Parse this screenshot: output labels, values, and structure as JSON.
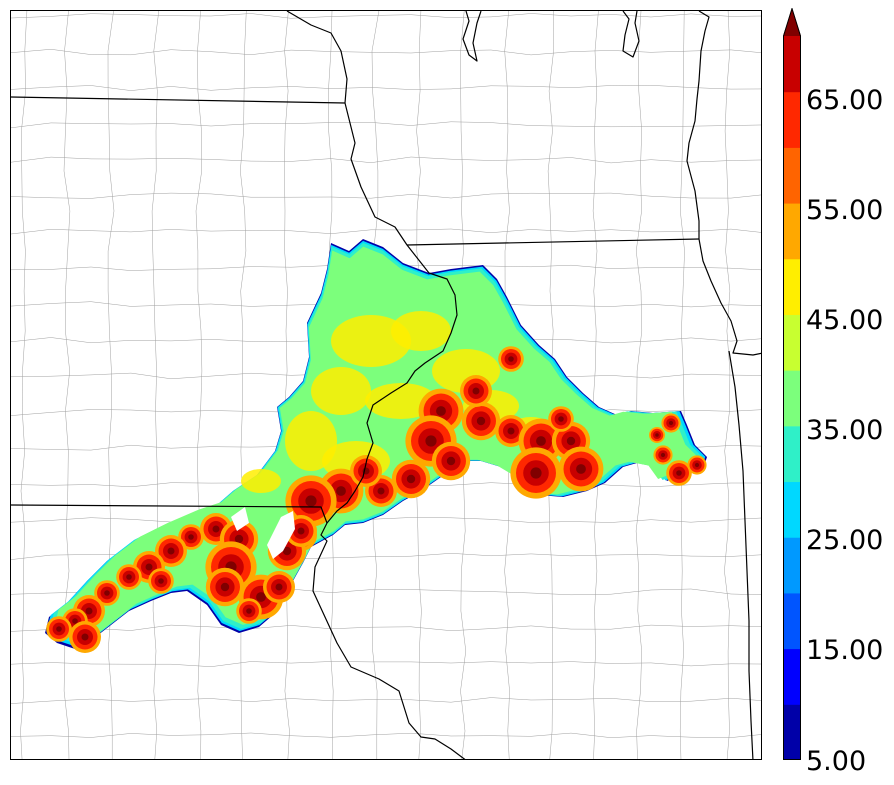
{
  "colorbar": {
    "ticks": [
      "5.00",
      "15.00",
      "25.00",
      "35.00",
      "45.00",
      "55.00",
      "65.00"
    ],
    "tick_values": [
      5,
      15,
      25,
      35,
      45,
      55,
      65
    ],
    "bins": [
      {
        "min": 5,
        "max": 10,
        "color": "#0000a8"
      },
      {
        "min": 10,
        "max": 15,
        "color": "#0000ff"
      },
      {
        "min": 15,
        "max": 20,
        "color": "#0055ff"
      },
      {
        "min": 20,
        "max": 25,
        "color": "#0099ff"
      },
      {
        "min": 25,
        "max": 30,
        "color": "#00d8ff"
      },
      {
        "min": 30,
        "max": 35,
        "color": "#2ff0c8"
      },
      {
        "min": 35,
        "max": 40,
        "color": "#7cff7c"
      },
      {
        "min": 40,
        "max": 45,
        "color": "#c8ff30"
      },
      {
        "min": 45,
        "max": 50,
        "color": "#ffee00"
      },
      {
        "min": 50,
        "max": 55,
        "color": "#ffa800"
      },
      {
        "min": 55,
        "max": 60,
        "color": "#ff6400"
      },
      {
        "min": 60,
        "max": 65,
        "color": "#ff2800"
      },
      {
        "min": 65,
        "max": 70,
        "color": "#c80000"
      }
    ],
    "extend_color": "#800000"
  },
  "colors": {
    "state_border": "#000000",
    "county_border": "#a0a0a0",
    "frame": "#000000"
  }
}
